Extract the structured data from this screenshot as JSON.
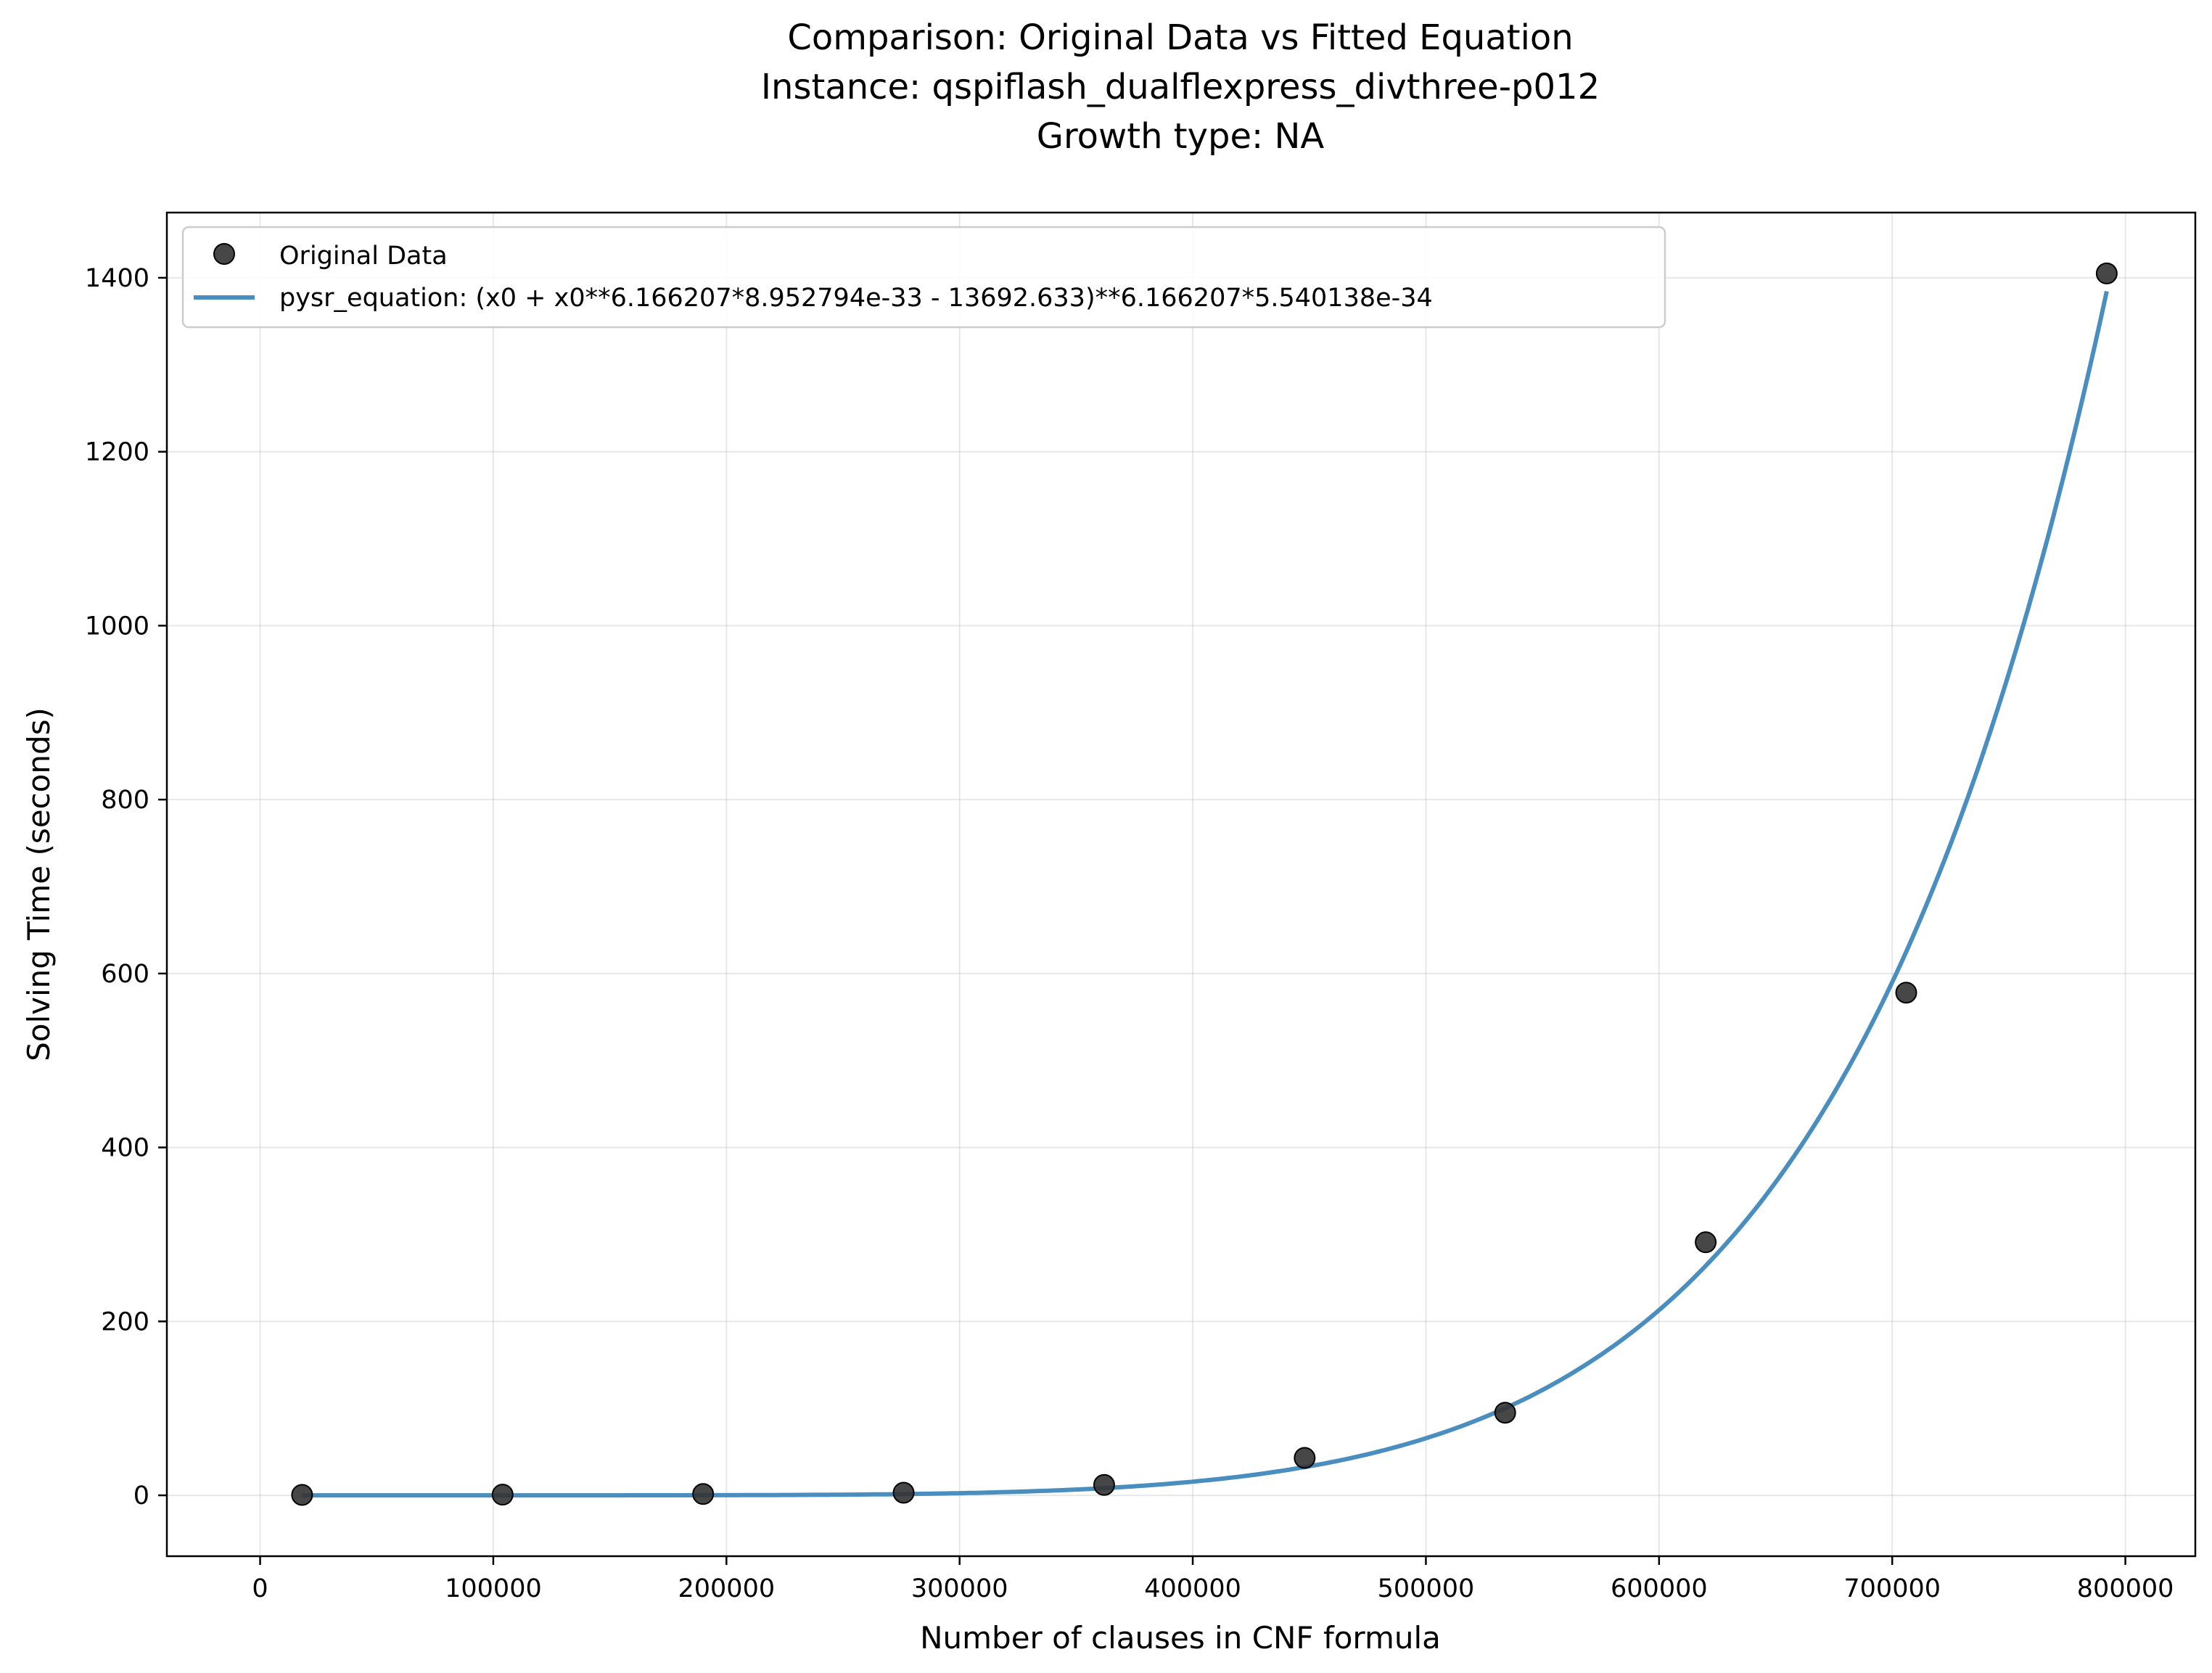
{
  "chart_data": {
    "type": "scatter",
    "title_lines": [
      "Comparison: Original Data vs Fitted Equation",
      "Instance: qspiflash_dualflexpress_divthree-p012",
      "Growth type: NA"
    ],
    "xlabel": "Number of clauses in CNF formula",
    "ylabel": "Solving Time (seconds)",
    "xlim": [
      -40000,
      830000
    ],
    "ylim": [
      -70,
      1475
    ],
    "xticks": [
      0,
      100000,
      200000,
      300000,
      400000,
      500000,
      600000,
      700000,
      800000
    ],
    "xtick_labels": [
      "0",
      "100000",
      "200000",
      "300000",
      "400000",
      "500000",
      "600000",
      "700000",
      "800000"
    ],
    "yticks": [
      0,
      200,
      400,
      600,
      800,
      1000,
      1200,
      1400
    ],
    "ytick_labels": [
      "0",
      "200",
      "400",
      "600",
      "800",
      "1000",
      "1200",
      "1400"
    ],
    "grid": true,
    "legend_position": "upper-left",
    "series": [
      {
        "name": "Original Data",
        "kind": "scatter",
        "color": "#333333",
        "x": [
          18000,
          104000,
          190000,
          276000,
          362000,
          448000,
          534000,
          620000,
          706000,
          792000
        ],
        "y": [
          0.5,
          0.8,
          1.5,
          3,
          12,
          43,
          95,
          291,
          578,
          1405
        ]
      },
      {
        "name": "pysr_equation: (x0 + x0**6.166207*8.952794e-33 - 13692.633)**6.166207*5.540138e-34",
        "kind": "line",
        "color": "#4a8ebf",
        "equation": {
          "a": 8.952794e-33,
          "p": 6.166207,
          "c": 13692.633,
          "k": 5.540138e-34
        },
        "x_range": [
          18000,
          792000
        ]
      }
    ]
  }
}
